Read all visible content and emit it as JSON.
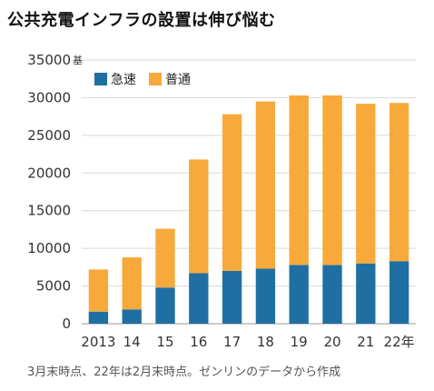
{
  "title": "公共充電インフラの設置は伸び悩む",
  "note": "3月末時点、22年は2月末時点。ゼンリンのデータから作成",
  "chart_data": {
    "type": "bar",
    "stacked": true,
    "categories": [
      "2013",
      "14",
      "15",
      "16",
      "17",
      "18",
      "19",
      "20",
      "21",
      "22年"
    ],
    "series": [
      {
        "name": "急速",
        "color": "#1f6fa3",
        "values": [
          1600,
          1900,
          4800,
          6700,
          7000,
          7300,
          7800,
          7800,
          8000,
          8300
        ]
      },
      {
        "name": "普通",
        "color": "#f7a93b",
        "values": [
          5600,
          6900,
          7800,
          15100,
          20800,
          22200,
          22500,
          22500,
          21200,
          21000
        ]
      }
    ],
    "yticks": [
      "0",
      "5000",
      "10000",
      "15000",
      "20000",
      "25000",
      "30000",
      "35000"
    ],
    "yunit": "基",
    "ylim": [
      0,
      35000
    ],
    "legend_position": "top-left",
    "grid": true
  }
}
